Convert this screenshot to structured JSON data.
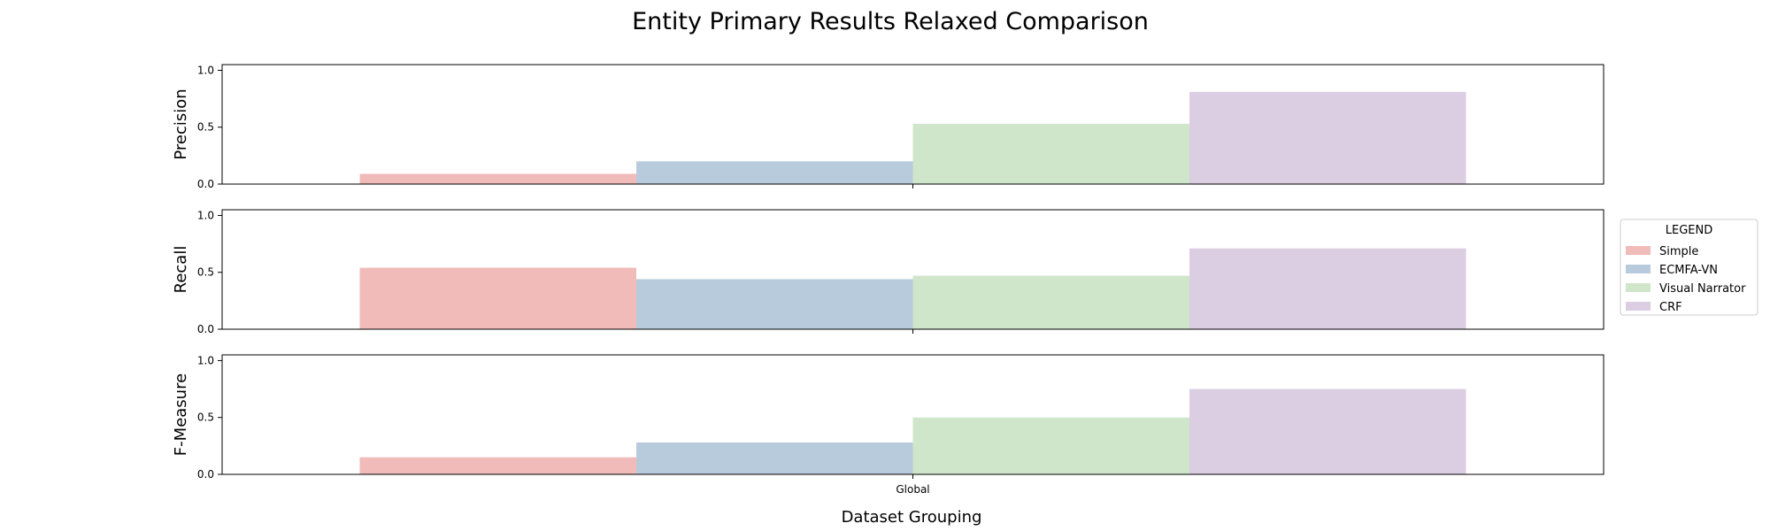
{
  "chart_data": {
    "type": "bar",
    "title": "Entity Primary Results Relaxed Comparison",
    "xlabel": "Dataset Grouping",
    "categories": [
      "Global"
    ],
    "ylim": [
      0,
      1.05
    ],
    "yticks": [
      "0.0",
      "0.5",
      "1.0"
    ],
    "legend": {
      "title": "LEGEND",
      "placement": "right",
      "entries": [
        "Simple",
        "ECMFA-VN",
        "Visual Narrator",
        "CRF"
      ]
    },
    "colors": {
      "Simple": "#f0bbb8",
      "ECMFA-VN": "#b8cbdc",
      "Visual Narrator": "#cfe6ca",
      "CRF": "#dbcde2"
    },
    "panels": [
      {
        "ylabel": "Precision",
        "series": [
          {
            "name": "Simple",
            "values": [
              0.09
            ]
          },
          {
            "name": "ECMFA-VN",
            "values": [
              0.2
            ]
          },
          {
            "name": "Visual Narrator",
            "values": [
              0.53
            ]
          },
          {
            "name": "CRF",
            "values": [
              0.81
            ]
          }
        ]
      },
      {
        "ylabel": "Recall",
        "series": [
          {
            "name": "Simple",
            "values": [
              0.54
            ]
          },
          {
            "name": "ECMFA-VN",
            "values": [
              0.44
            ]
          },
          {
            "name": "Visual Narrator",
            "values": [
              0.47
            ]
          },
          {
            "name": "CRF",
            "values": [
              0.71
            ]
          }
        ]
      },
      {
        "ylabel": "F-Measure",
        "series": [
          {
            "name": "Simple",
            "values": [
              0.15
            ]
          },
          {
            "name": "ECMFA-VN",
            "values": [
              0.28
            ]
          },
          {
            "name": "Visual Narrator",
            "values": [
              0.5
            ]
          },
          {
            "name": "CRF",
            "values": [
              0.75
            ]
          }
        ]
      }
    ]
  }
}
